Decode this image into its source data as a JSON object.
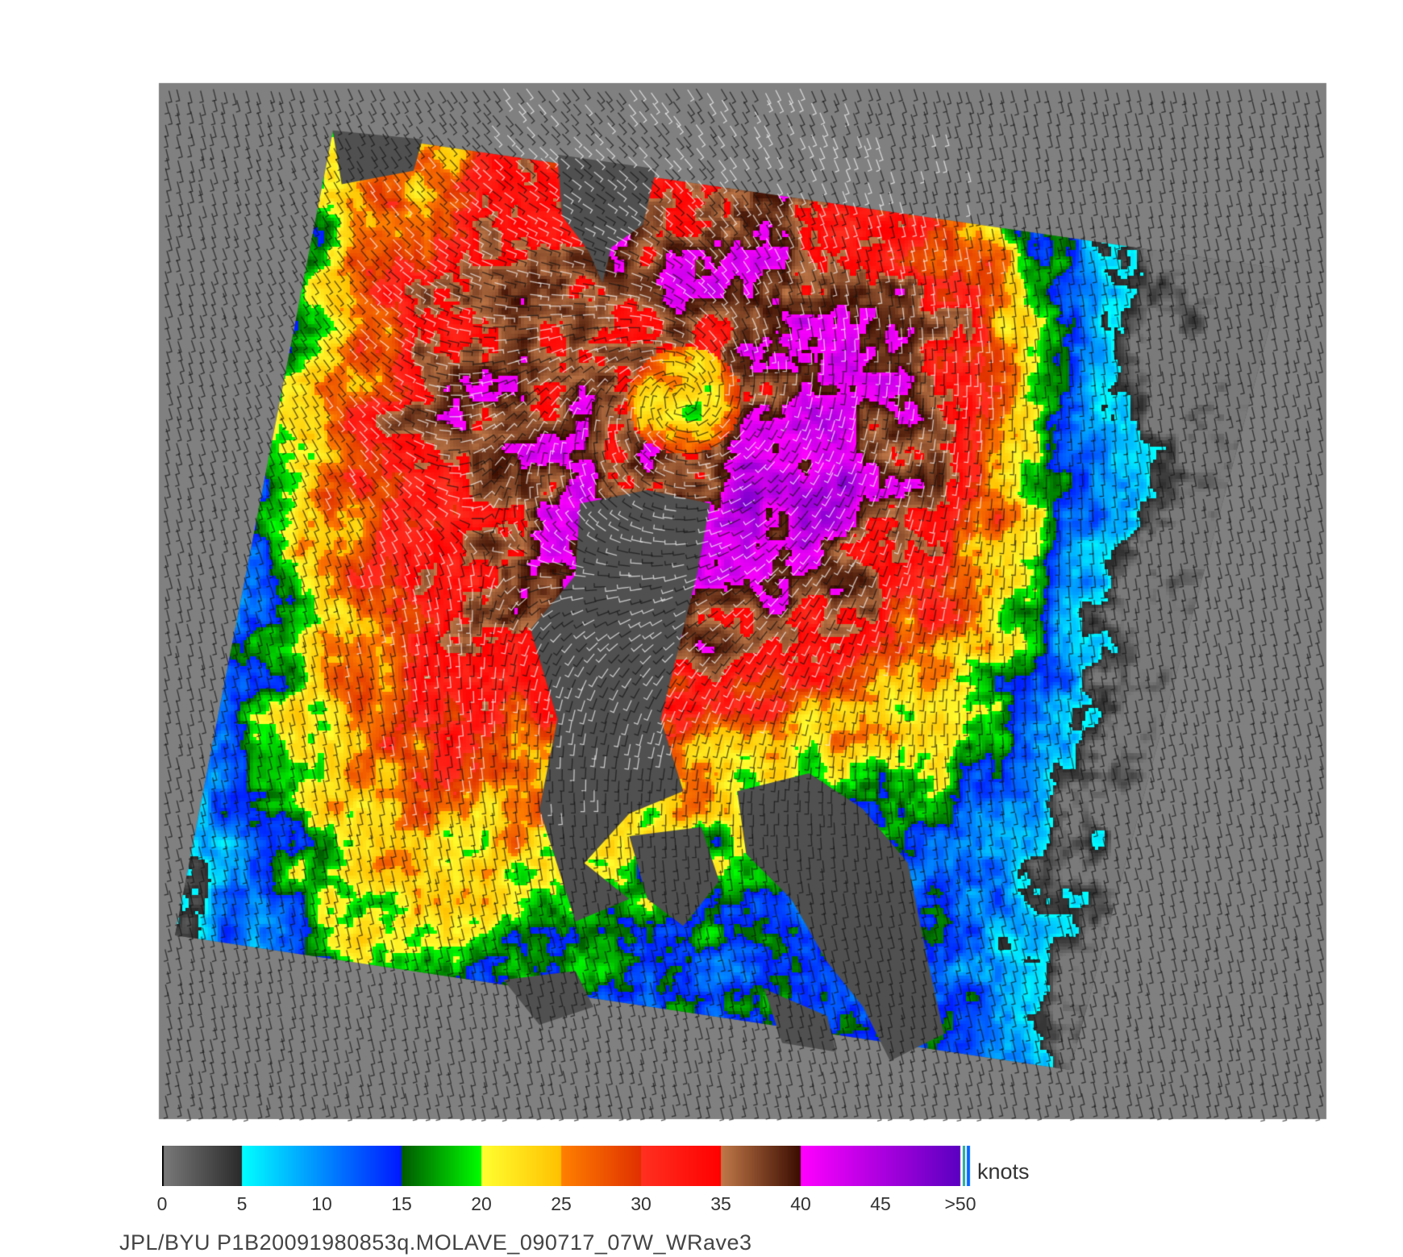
{
  "map": {
    "type": "scatterometer wind speed swath",
    "background_color": "#808080",
    "land_color": "#505050"
  },
  "colorbar": {
    "units": "knots",
    "ticks": [
      "0",
      "5",
      "10",
      "15",
      "20",
      "25",
      "30",
      "35",
      "40",
      "45",
      ">50"
    ],
    "range": [
      0,
      50
    ],
    "segments": [
      {
        "from": 0,
        "to": 5,
        "start": "#7a7a7a",
        "end": "#2a2a2a"
      },
      {
        "from": 5,
        "to": 15,
        "start": "#00ffff",
        "end": "#0018ff"
      },
      {
        "from": 15,
        "to": 20,
        "start": "#005a00",
        "end": "#00ff00"
      },
      {
        "from": 20,
        "to": 25,
        "start": "#ffff30",
        "end": "#ffc000"
      },
      {
        "from": 25,
        "to": 30,
        "start": "#ff8000",
        "end": "#e03000"
      },
      {
        "from": 30,
        "to": 35,
        "start": "#ff3020",
        "end": "#ff0000"
      },
      {
        "from": 35,
        "to": 40,
        "start": "#c07848",
        "end": "#3a0c00"
      },
      {
        "from": 40,
        "to": 50,
        "start": "#ff00ff",
        "end": "#5a00c0"
      }
    ]
  },
  "caption": "JPL/BYU  P1B20091980853q.MOLAVE_090717_07W_WRave3"
}
